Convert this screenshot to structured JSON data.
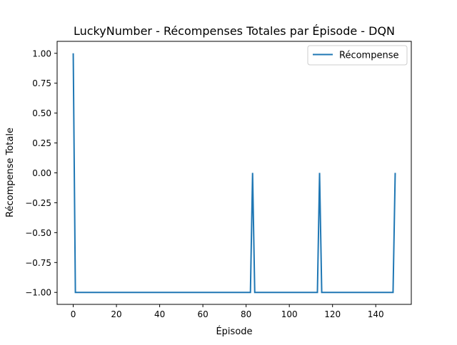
{
  "chart_data": {
    "type": "line",
    "title": "LuckyNumber - Récompenses Totales par Épisode - DQN",
    "xlabel": "Épisode",
    "ylabel": "Récompense Totale",
    "xlim": [
      -7.45,
      156.45
    ],
    "ylim": [
      -1.1,
      1.1
    ],
    "xticks": [
      0,
      20,
      40,
      60,
      80,
      100,
      120,
      140
    ],
    "xtick_labels": [
      "0",
      "20",
      "40",
      "60",
      "80",
      "100",
      "120",
      "140"
    ],
    "yticks": [
      -1.0,
      -0.75,
      -0.5,
      -0.25,
      0.0,
      0.25,
      0.5,
      0.75,
      1.0
    ],
    "ytick_labels": [
      "−1.00",
      "−0.75",
      "−0.50",
      "−0.25",
      "0.00",
      "0.25",
      "0.50",
      "0.75",
      "1.00"
    ],
    "grid": false,
    "legend_position": "top-right",
    "series": [
      {
        "name": "Récompense",
        "color": "#1f77b4",
        "x": [
          0,
          1,
          82,
          83,
          84,
          113,
          114,
          115,
          148,
          149
        ],
        "y": [
          1,
          -1,
          -1,
          0,
          -1,
          -1,
          0,
          -1,
          -1,
          0
        ]
      }
    ]
  }
}
